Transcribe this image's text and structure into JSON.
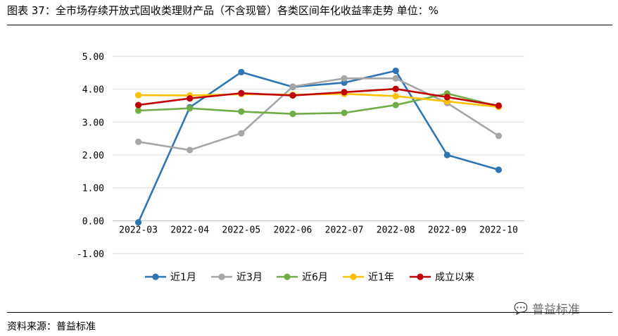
{
  "title": "图表 37：全市场存续开放式固收类理财产品（不含现管）各类区间年化收益率走势    单位：%",
  "source": "资料来源：普益标准",
  "watermark": "普益标准",
  "chart_data": {
    "type": "line",
    "title": "",
    "xlabel": "",
    "ylabel": "",
    "categories": [
      "2022-03",
      "2022-04",
      "2022-05",
      "2022-06",
      "2022-07",
      "2022-08",
      "2022-09",
      "2022-10"
    ],
    "ylim": [
      -1.0,
      5.0
    ],
    "yticks": [
      "-1.00",
      "0.00",
      "1.00",
      "2.00",
      "3.00",
      "4.00",
      "5.00"
    ],
    "grid": true,
    "legend_position": "bottom",
    "series": [
      {
        "name": "近1月",
        "color": "#2e75b6",
        "values": [
          -0.05,
          3.45,
          4.52,
          4.07,
          4.2,
          4.56,
          2.0,
          1.55
        ]
      },
      {
        "name": "近3月",
        "color": "#a6a6a6",
        "values": [
          2.4,
          2.15,
          2.66,
          4.08,
          4.33,
          4.33,
          3.58,
          2.58
        ]
      },
      {
        "name": "近6月",
        "color": "#70ad47",
        "values": [
          3.35,
          3.42,
          3.32,
          3.25,
          3.28,
          3.52,
          3.87,
          3.48
        ]
      },
      {
        "name": "近1年",
        "color": "#ffc000",
        "values": [
          3.82,
          3.81,
          3.85,
          3.83,
          3.86,
          3.79,
          3.63,
          3.46
        ]
      },
      {
        "name": "成立以来",
        "color": "#c00000",
        "values": [
          3.52,
          3.72,
          3.88,
          3.81,
          3.91,
          4.01,
          3.76,
          3.5
        ]
      }
    ]
  }
}
